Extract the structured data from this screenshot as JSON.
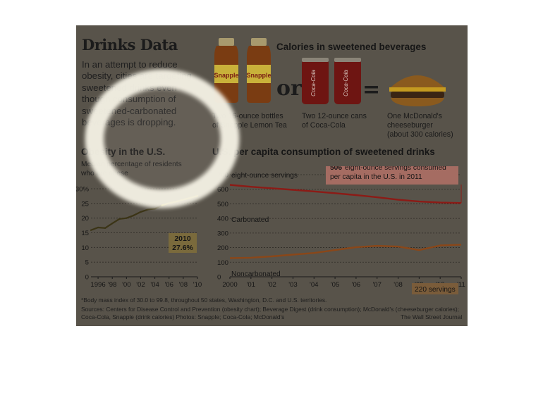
{
  "header": {
    "title": "Drinks Data",
    "intro": "In an attempt to reduce obesity, cities are targeting sweetened drinks even though consumption of sweetened-carbonated beverages is dropping."
  },
  "calories": {
    "title": "Calories in sweetened beverages",
    "or": "or",
    "equals": "=",
    "snapple_brand": "Snapple",
    "coke_brand": "Coca-Cola",
    "item1_line1": "Two 16-ounce bottles",
    "item1_line2": "of Snapple Lemon Tea",
    "item2_line1": "Two 12-ounce cans",
    "item2_line2": "of Coca-Cola",
    "item3_line1": "One McDonald's",
    "item3_line2": "cheeseburger",
    "item3_line3": "(about 300 calories)"
  },
  "obesity": {
    "title": "Obesity in the U.S.",
    "subtitle_line1": "Median percentage of residents",
    "subtitle_line2": "who are obese",
    "callout_year": "2010",
    "callout_value": "27.6%"
  },
  "consumption": {
    "title": "U.S. per capita consumption of sweetened drinks",
    "unit_label": "eight-ounce servings",
    "callout_bold": "506",
    "callout_line1": "eight-ounce servings consumed",
    "callout_line2": "per capita in the U.S. in 2011",
    "carbonated_label": "Carbonated",
    "noncarbonated_label": "Noncarbonated",
    "noncarb_callout": "220 servings"
  },
  "footer": {
    "note": "*Body mass index of 30.0 to 99.8, throughout 50 states, Washington, D.C. and U.S. territories.",
    "sources_line1": "Sources: Centers for Disease Control and Prevention (obesity chart); Beverage Digest (drink consumption); McDonald's (cheeseburger calories);",
    "sources_line2": "Coca-Cola, Snapple (drink calories)        Photos: Snapple; Coca-Cola; McDonald's",
    "credit": "The Wall Street Journal"
  },
  "colors": {
    "panel": "#58534a",
    "obesity_line_early": "#3b3416",
    "obesity_line_late": "#e4d52c",
    "carbonated_line": "#8c1b16",
    "noncarbonated_line": "#8a4719",
    "callout_red": "#a56c62",
    "callout_tan": "#7a6a3c",
    "highlight_ring": "#f4f1e4"
  },
  "chart_data": [
    {
      "type": "line",
      "title": "Obesity in the U.S.",
      "subtitle": "Median percentage of residents who are obese",
      "x_ticks": [
        "1996",
        "'98",
        "'00",
        "'02",
        "'04",
        "'06",
        "'08",
        "'10"
      ],
      "y_ticks": [
        "0",
        "5",
        "10",
        "15",
        "20",
        "25",
        "30%"
      ],
      "ylim": [
        0,
        30
      ],
      "x": [
        1995,
        1996,
        1997,
        1998,
        1999,
        2000,
        2001,
        2002,
        2003,
        2004,
        2005,
        2006,
        2007,
        2008,
        2009,
        2010
      ],
      "values": [
        15.9,
        16.8,
        16.6,
        18.2,
        19.7,
        20.0,
        20.9,
        22.1,
        22.9,
        23.2,
        24.4,
        25.1,
        25.6,
        26.3,
        26.9,
        27.6
      ],
      "annotation": {
        "year": "2010",
        "value": "27.6%"
      }
    },
    {
      "type": "line",
      "title": "U.S. per capita consumption of sweetened drinks",
      "ylabel": "eight-ounce servings",
      "x_ticks": [
        "2000",
        "'01",
        "'02",
        "'03",
        "'04",
        "'05",
        "'06",
        "'07",
        "'08",
        "'09",
        "'10",
        "'11"
      ],
      "y_ticks": [
        "0",
        "100",
        "200",
        "300",
        "400",
        "500",
        "600",
        "700"
      ],
      "ylim": [
        0,
        700
      ],
      "x": [
        2000,
        2001,
        2002,
        2003,
        2004,
        2005,
        2006,
        2007,
        2008,
        2009,
        2010,
        2011
      ],
      "series": [
        {
          "name": "Carbonated",
          "values": [
            630,
            617,
            607,
            596,
            585,
            573,
            560,
            545,
            528,
            516,
            509,
            506
          ]
        },
        {
          "name": "Noncarbonated",
          "values": [
            128,
            131,
            140,
            152,
            163,
            183,
            203,
            212,
            207,
            183,
            215,
            220
          ]
        }
      ],
      "annotations": [
        "506 eight-ounce servings consumed per capita in the U.S. in 2011",
        "220 servings"
      ]
    }
  ]
}
